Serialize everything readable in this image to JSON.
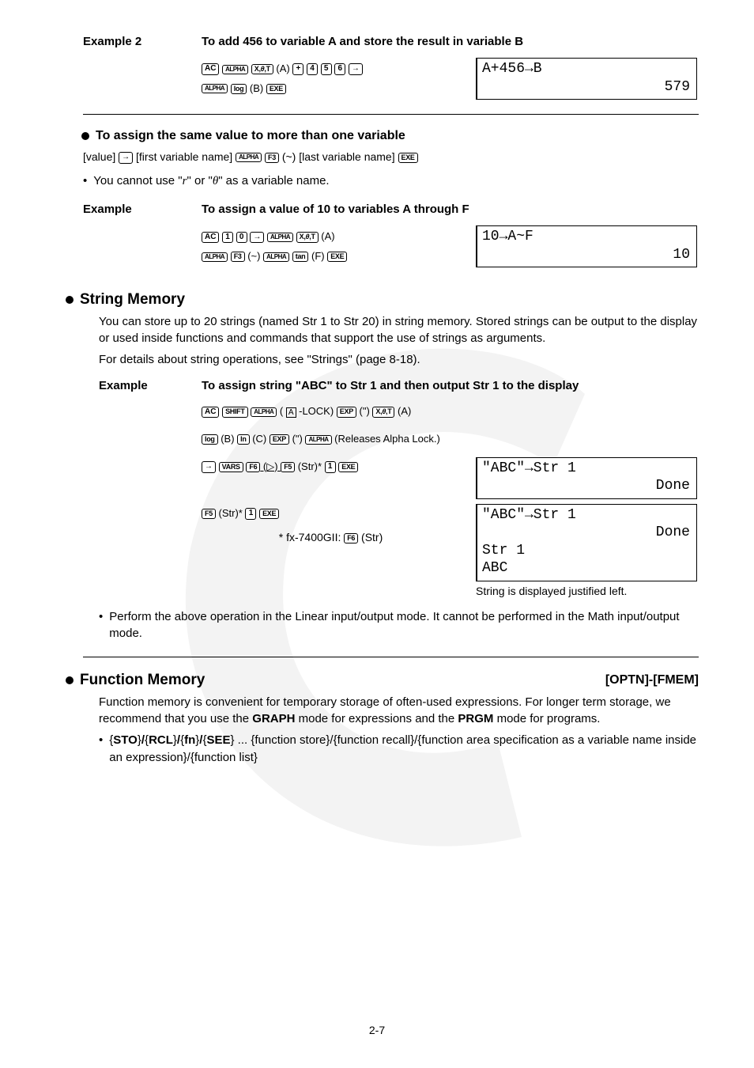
{
  "example2": {
    "label": "Example 2",
    "title": "To add 456 to variable A and store the result in variable B",
    "keys_html": "<span class='key key-ac'>AC</span> <span class='key key-alpha'>ALPHA</span> <span class='key key-fn'>X,<i>θ</i>,T</span> (A) <span class='key'>+</span> <span class='key'>4</span> <span class='key'>5</span> <span class='key'>6</span> <span class='key'>→</span><br><span class='key key-alpha'>ALPHA</span> <span class='key key-fn'>log</span> (B) <span class='key key-fn'>EXE</span>",
    "lcd_line1": "A+456→B",
    "lcd_line2": "579"
  },
  "assign_same": {
    "heading": "To assign the same value to more than one variable",
    "syntax_html": "[value] <span class='key'>→</span> [first variable name] <span class='key key-alpha'>ALPHA</span> <span class='key key-fn'>F3</span> (~) [last variable name] <span class='key key-fn'>EXE</span>",
    "note_html": "You cannot use \"<span class='ital'>r</span>\" or \"<span class='ital'>θ</span>\" as a variable name."
  },
  "example_AF": {
    "label": "Example",
    "title": "To assign a value of 10 to variables A through F",
    "keys_html": "<span class='key key-ac'>AC</span> <span class='key'>1</span> <span class='key'>0</span> <span class='key'>→</span> <span class='key key-alpha'>ALPHA</span> <span class='key key-fn'>X,<i>θ</i>,T</span> (A)<br><span class='key key-alpha'>ALPHA</span> <span class='key key-fn'>F3</span> (~) <span class='key key-alpha'>ALPHA</span> <span class='key key-fn'>tan</span> (F) <span class='key key-fn'>EXE</span>",
    "lcd_line1": "10→A~F",
    "lcd_line2": "10"
  },
  "string_memory": {
    "heading": "String Memory",
    "para1": "You can store up to 20 strings (named Str 1 to Str 20) in string memory. Stored strings can be output to the display or used inside functions and commands that support the use of strings as arguments.",
    "para2": "For details about string operations, see \"Strings\" (page 8-18)."
  },
  "example_str": {
    "label": "Example",
    "title": "To assign string \"ABC\" to Str 1 and then output Str 1 to the display",
    "line1_html": "<span class='key key-ac'>AC</span> <span class='key key-fn'>SHIFT</span> <span class='key key-alpha'>ALPHA</span> ( <span style='border:1px solid #000; padding:0 2px; font-size:10px;'>A</span> -LOCK) <span class='key key-fn'>EXP</span> (\") <span class='key key-fn'>X,<i>θ</i>,T</span> (A)",
    "line2_html": "<span class='key key-fn'>log</span> (B) <span class='key key-fn'>In</span> (C) <span class='key key-fn'>EXP</span> (\") <span class='key key-alpha'>ALPHA</span> (Releases Alpha Lock.)",
    "line3_html": "<span class='key'>→</span> <span class='key key-fn'>VARS</span> <u><span class='key key-fn'>F6</span> (▷) <span class='key key-fn'>F5</span></u> (Str)* <span class='key'>1</span> <span class='key key-fn'>EXE</span>",
    "line4_html": "<u><span class='key key-fn'>F5</span></u> (Str)* <span class='key'>1</span> <span class='key key-fn'>EXE</span>",
    "footnote_html": "* fx-7400GII: <span class='key key-fn'>F6</span> (Str)",
    "lcd1_line1": "\"ABC\"→Str 1",
    "lcd1_line2": "Done",
    "lcd2_line1": "\"ABC\"→Str 1",
    "lcd2_line2": "Done",
    "lcd2_line3": "Str 1",
    "lcd2_line4": "ABC",
    "caption": "String is displayed justified left.",
    "note": "Perform the above operation in the Linear input/output mode. It cannot be performed in the Math input/output mode."
  },
  "function_memory": {
    "heading": "Function Memory",
    "tag": "[OPTN]-[FMEM]",
    "para_html": "Function memory is convenient for temporary storage of often-used expressions. For longer term storage, we recommend that you use the <b>GRAPH</b> mode for expressions and the <b>PRGM</b> mode for programs.",
    "bullet_html": "{<b>STO</b>}<b>/</b>{<b>RCL</b>}<b>/</b>{<b>fn</b>}<b>/</b>{<b>SEE</b>} ... {function store}/{function recall}/{function area specification as a variable name inside an expression}/{function list}"
  },
  "page_num": "2-7"
}
